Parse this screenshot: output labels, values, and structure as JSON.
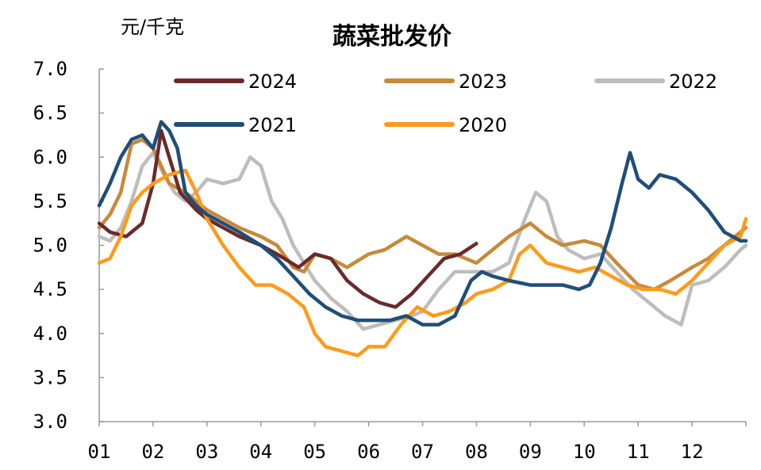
{
  "chart_data": {
    "type": "line",
    "title": "蔬菜批发价",
    "ylabel": "元/千克",
    "xlabel": "",
    "ylim": [
      3.0,
      7.0
    ],
    "yticks": [
      "3.0",
      "3.5",
      "4.0",
      "4.5",
      "5.0",
      "5.5",
      "6.0",
      "6.5",
      "7.0"
    ],
    "xticks": [
      "01",
      "02",
      "03",
      "04",
      "05",
      "06",
      "07",
      "08",
      "09",
      "10",
      "11",
      "12"
    ],
    "xlim": [
      1,
      13
    ],
    "grid": false,
    "legend_placement": "top",
    "series": [
      {
        "name": "2024",
        "color": "#6b2a2a",
        "x": [
          1.0,
          1.2,
          1.5,
          1.8,
          2.0,
          2.15,
          2.3,
          2.5,
          2.8,
          3.0,
          3.3,
          3.6,
          4.0,
          4.3,
          4.7,
          5.0,
          5.3,
          5.6,
          5.9,
          6.2,
          6.5,
          6.8,
          7.1,
          7.4,
          7.7,
          8.0
        ],
        "y": [
          5.25,
          5.15,
          5.1,
          5.25,
          5.7,
          6.3,
          6.0,
          5.6,
          5.4,
          5.3,
          5.2,
          5.1,
          5.0,
          4.9,
          4.75,
          4.9,
          4.85,
          4.6,
          4.45,
          4.35,
          4.3,
          4.45,
          4.65,
          4.85,
          4.9,
          5.02
        ]
      },
      {
        "name": "2023",
        "color": "#c8893a",
        "x": [
          1.0,
          1.2,
          1.4,
          1.6,
          1.8,
          2.0,
          2.3,
          2.6,
          3.0,
          3.3,
          3.6,
          4.0,
          4.3,
          4.6,
          4.8,
          5.0,
          5.3,
          5.6,
          6.0,
          6.3,
          6.7,
          7.0,
          7.3,
          7.6,
          8.0,
          8.3,
          8.6,
          9.0,
          9.3,
          9.6,
          10.0,
          10.3,
          10.6,
          11.0,
          11.3,
          11.6,
          12.0,
          12.3,
          12.6,
          13.0
        ],
        "y": [
          5.2,
          5.35,
          5.6,
          6.15,
          6.2,
          6.1,
          5.7,
          5.6,
          5.4,
          5.3,
          5.2,
          5.1,
          5.0,
          4.75,
          4.7,
          4.9,
          4.85,
          4.75,
          4.9,
          4.95,
          5.1,
          5.0,
          4.9,
          4.9,
          4.8,
          4.95,
          5.1,
          5.25,
          5.1,
          5.0,
          5.05,
          5.0,
          4.8,
          4.55,
          4.5,
          4.6,
          4.75,
          4.85,
          5.0,
          5.2
        ]
      },
      {
        "name": "2022",
        "color": "#bdbdbd",
        "x": [
          1.0,
          1.2,
          1.4,
          1.6,
          1.8,
          2.0,
          2.2,
          2.4,
          2.6,
          2.8,
          3.0,
          3.3,
          3.6,
          3.8,
          4.0,
          4.2,
          4.4,
          4.6,
          4.8,
          5.0,
          5.3,
          5.6,
          5.9,
          6.2,
          6.5,
          6.8,
          7.0,
          7.3,
          7.6,
          8.0,
          8.3,
          8.6,
          8.9,
          9.1,
          9.3,
          9.5,
          9.7,
          10.0,
          10.3,
          10.6,
          10.9,
          11.2,
          11.5,
          11.8,
          12.0,
          12.3,
          12.6,
          12.9,
          13.0
        ],
        "y": [
          5.1,
          5.05,
          5.2,
          5.5,
          5.9,
          6.05,
          5.8,
          5.6,
          5.5,
          5.6,
          5.75,
          5.7,
          5.75,
          6.0,
          5.9,
          5.5,
          5.3,
          5.0,
          4.8,
          4.6,
          4.4,
          4.25,
          4.05,
          4.1,
          4.15,
          4.2,
          4.25,
          4.5,
          4.7,
          4.7,
          4.7,
          4.8,
          5.3,
          5.6,
          5.5,
          5.1,
          4.95,
          4.85,
          4.9,
          4.7,
          4.5,
          4.35,
          4.2,
          4.1,
          4.55,
          4.6,
          4.75,
          4.95,
          5.0
        ]
      },
      {
        "name": "2021",
        "color": "#1f4e79",
        "x": [
          1.0,
          1.2,
          1.4,
          1.6,
          1.8,
          2.0,
          2.15,
          2.3,
          2.45,
          2.6,
          2.8,
          3.0,
          3.3,
          3.6,
          4.0,
          4.3,
          4.6,
          4.9,
          5.2,
          5.5,
          5.8,
          6.1,
          6.4,
          6.7,
          7.0,
          7.3,
          7.6,
          7.9,
          8.1,
          8.3,
          8.6,
          9.0,
          9.3,
          9.6,
          9.9,
          10.1,
          10.3,
          10.5,
          10.7,
          10.85,
          11.0,
          11.2,
          11.4,
          11.7,
          12.0,
          12.3,
          12.6,
          12.9,
          13.0
        ],
        "y": [
          5.45,
          5.7,
          6.0,
          6.2,
          6.25,
          6.1,
          6.4,
          6.3,
          6.1,
          5.6,
          5.45,
          5.35,
          5.25,
          5.15,
          5.0,
          4.85,
          4.65,
          4.45,
          4.3,
          4.2,
          4.15,
          4.15,
          4.15,
          4.2,
          4.1,
          4.1,
          4.2,
          4.6,
          4.7,
          4.65,
          4.6,
          4.55,
          4.55,
          4.55,
          4.5,
          4.55,
          4.8,
          5.2,
          5.7,
          6.05,
          5.75,
          5.65,
          5.8,
          5.75,
          5.6,
          5.4,
          5.15,
          5.05,
          5.05
        ]
      },
      {
        "name": "2020",
        "color": "#ff9a1a",
        "x": [
          1.0,
          1.2,
          1.4,
          1.6,
          1.8,
          2.0,
          2.3,
          2.6,
          2.8,
          3.0,
          3.3,
          3.6,
          3.9,
          4.2,
          4.5,
          4.8,
          5.0,
          5.2,
          5.5,
          5.8,
          6.0,
          6.3,
          6.6,
          6.9,
          7.2,
          7.5,
          7.8,
          8.0,
          8.3,
          8.6,
          8.8,
          9.0,
          9.3,
          9.6,
          9.9,
          10.2,
          10.5,
          10.8,
          11.1,
          11.4,
          11.7,
          12.0,
          12.3,
          12.6,
          12.9,
          13.0
        ],
        "y": [
          4.8,
          4.85,
          5.1,
          5.45,
          5.6,
          5.7,
          5.8,
          5.85,
          5.6,
          5.3,
          5.0,
          4.75,
          4.55,
          4.55,
          4.45,
          4.3,
          4.0,
          3.85,
          3.8,
          3.75,
          3.85,
          3.85,
          4.1,
          4.3,
          4.2,
          4.25,
          4.35,
          4.45,
          4.5,
          4.6,
          4.9,
          5.0,
          4.8,
          4.75,
          4.7,
          4.75,
          4.65,
          4.55,
          4.5,
          4.5,
          4.45,
          4.6,
          4.8,
          5.0,
          5.1,
          5.3
        ]
      }
    ]
  }
}
